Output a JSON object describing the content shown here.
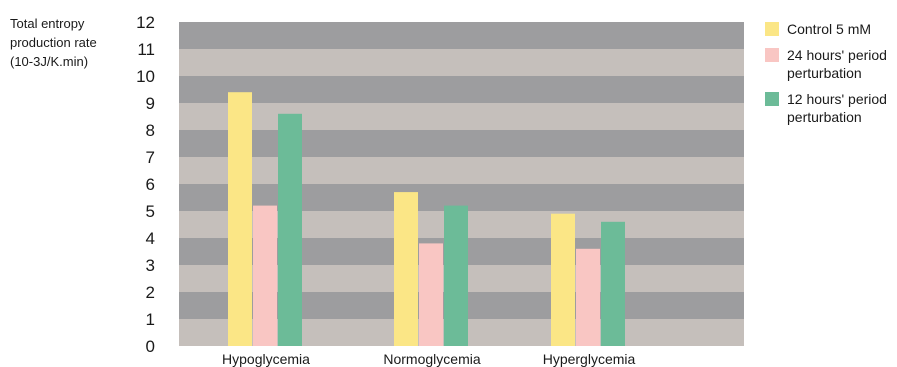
{
  "chart_data": {
    "type": "bar",
    "ylabel_lines": [
      "Total entropy",
      "production rate",
      "(10-3J/K.min)"
    ],
    "categories": [
      "Hypoglycemia",
      "Normoglycemia",
      "Hyperglycemia"
    ],
    "series": [
      {
        "name_lines": [
          "Control 5 mM"
        ],
        "color": "#fbe686",
        "values": [
          9.4,
          5.7,
          4.9
        ]
      },
      {
        "name_lines": [
          "24 hours' period",
          "perturbation"
        ],
        "color": "#f9c6c3",
        "values": [
          5.2,
          3.8,
          3.6
        ]
      },
      {
        "name_lines": [
          "12 hours' period",
          "perturbation"
        ],
        "color": "#6cbb98",
        "values": [
          8.6,
          5.2,
          4.6
        ]
      }
    ],
    "yticks": [
      "0",
      "1",
      "2",
      "3",
      "4",
      "5",
      "6",
      "7",
      "8",
      "9",
      "10",
      "11",
      "12"
    ],
    "ylim": [
      0,
      12
    ],
    "background_bands": [
      "#c5bfbb",
      "#9d9d9f"
    ],
    "grid": false,
    "legend_position": "right"
  }
}
